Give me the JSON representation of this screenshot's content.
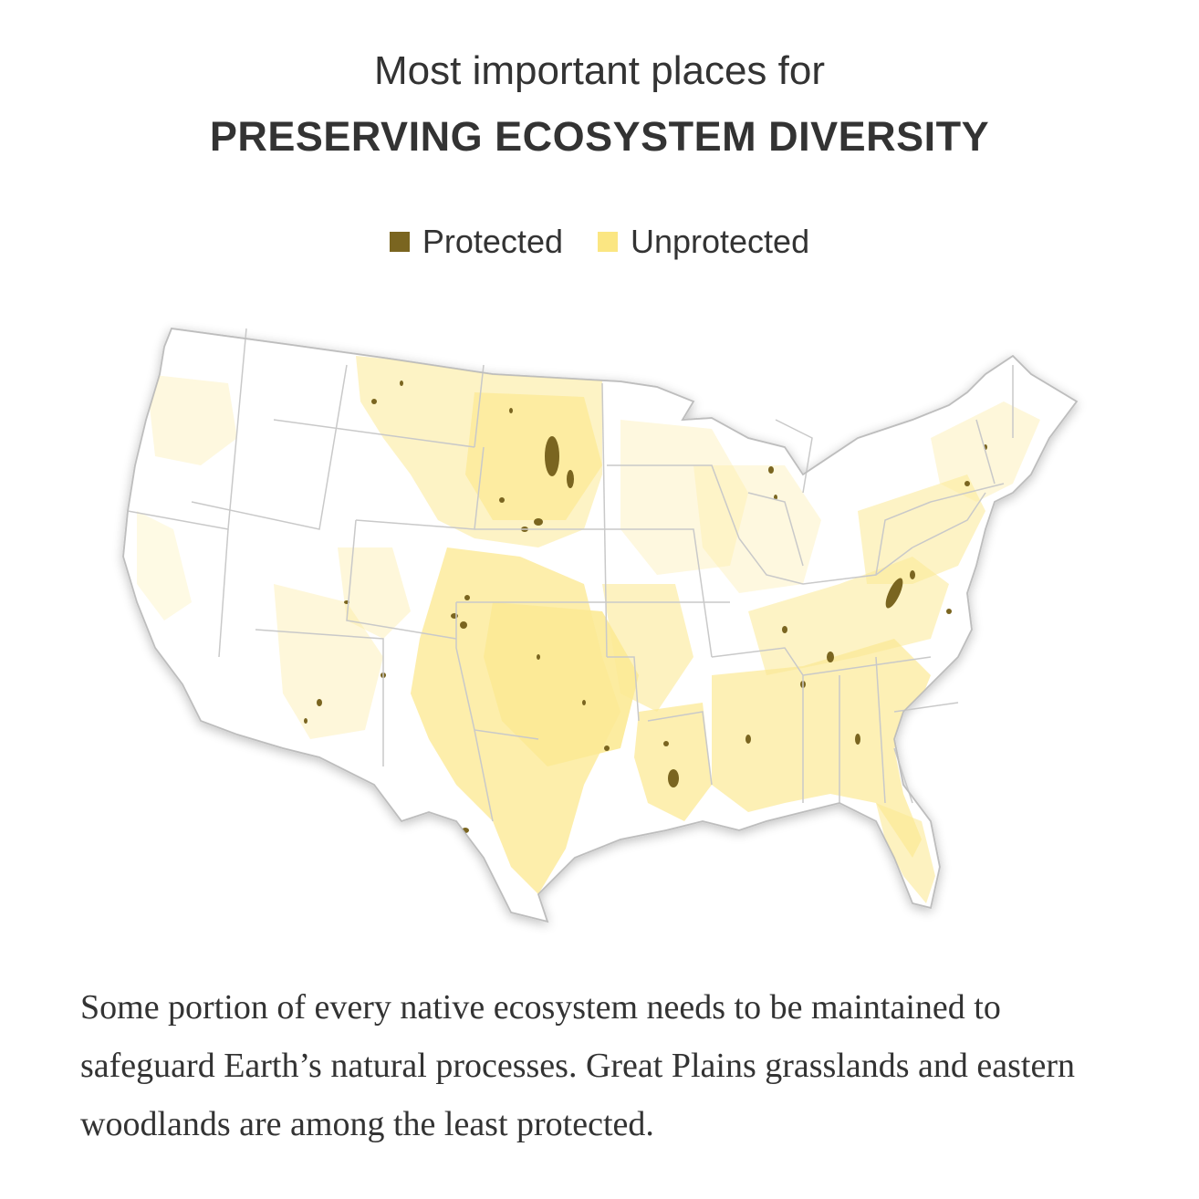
{
  "header": {
    "subtitle": "Most important places for",
    "title": "PRESERVING ECOSYSTEM DIVERSITY"
  },
  "legend": {
    "items": [
      {
        "label": "Protected",
        "color": "#7a6520"
      },
      {
        "label": "Unprotected",
        "color": "#fbe682"
      }
    ]
  },
  "map": {
    "region": "contiguous United States",
    "colors": {
      "land": "#ffffff",
      "borders": "#c9c9c9",
      "unprotected": "#fbe682",
      "protected": "#7a6520"
    }
  },
  "caption": {
    "text": "Some portion of every native ecosystem needs to be maintained to safeguard Earth’s natural processes. Great Plains grasslands and eastern woodlands are among the least protected."
  }
}
